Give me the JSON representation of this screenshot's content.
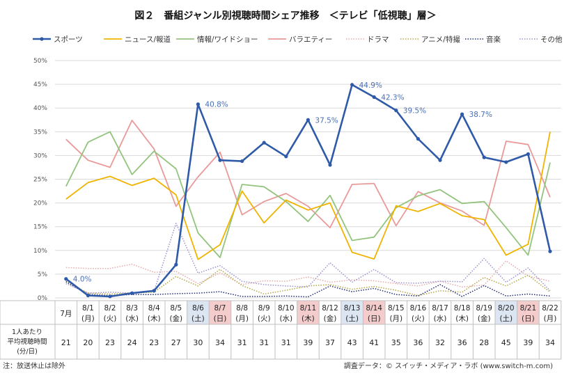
{
  "title": "図２　番組ジャンル別視聴時間シェア推移　＜テレビ「低視聴」層＞",
  "note": "注：放送休止は除外",
  "source": "調査データ：© スイッチ・メディア・ラボ (www.switch-m.com)",
  "row_label_lines": [
    "1人あたり",
    "平均視聴時間",
    "(分/日)"
  ],
  "colors": {
    "sports": "#2e5aa8",
    "news": "#f0b400",
    "info": "#93c47d",
    "variety": "#ea9999",
    "drama": "#e6a8a8",
    "anime": "#b5a642",
    "music": "#1f2a70",
    "other": "#9b8fcf",
    "saturday_bg": "#dce6f2",
    "sunday_bg": "#f4cccc",
    "grid": "#d9d9d9"
  },
  "chart_data": {
    "type": "line",
    "ylim": [
      0,
      50
    ],
    "yticks": [
      "0%",
      "5%",
      "10%",
      "15%",
      "20%",
      "25%",
      "30%",
      "35%",
      "40%",
      "45%",
      "50%"
    ],
    "categories": [
      "7月",
      "8/1",
      "8/2",
      "8/3",
      "8/4",
      "8/5",
      "8/6",
      "8/7",
      "8/8",
      "8/9",
      "8/10",
      "8/11",
      "8/12",
      "8/13",
      "8/14",
      "8/15",
      "8/16",
      "8/17",
      "8/18",
      "8/19",
      "8/20",
      "8/21",
      "8/22"
    ],
    "days": [
      "",
      "(月)",
      "(火)",
      "(水)",
      "(木)",
      "(金)",
      "(土)",
      "(日)",
      "(月)",
      "(火)",
      "(水)",
      "(木)",
      "(金)",
      "(土)",
      "(日)",
      "(月)",
      "(火)",
      "(水)",
      "(木)",
      "(金)",
      "(土)",
      "(日)",
      "(月)"
    ],
    "day_types": [
      "",
      "",
      "",
      "",
      "",
      "",
      "sat",
      "sun",
      "",
      "",
      "",
      "hol",
      "",
      "sat",
      "sun",
      "",
      "",
      "",
      "",
      "",
      "sat",
      "sun",
      ""
    ],
    "avg_minutes": [
      "21",
      "20",
      "23",
      "24",
      "23",
      "27",
      "30",
      "34",
      "31",
      "31",
      "31",
      "39",
      "37",
      "43",
      "41",
      "35",
      "36",
      "32",
      "36",
      "28",
      "45",
      "39",
      "34"
    ],
    "series": [
      {
        "key": "sports",
        "name": "スポーツ",
        "style": "solid-marker",
        "values": [
          4.0,
          0.5,
          0.3,
          1.0,
          1.5,
          7.0,
          40.8,
          29.0,
          28.8,
          32.7,
          29.8,
          37.5,
          28.0,
          44.9,
          42.3,
          39.5,
          33.5,
          29.0,
          38.7,
          29.6,
          28.6,
          30.3,
          9.8
        ]
      },
      {
        "key": "news",
        "name": "ニュース/報道",
        "style": "solid",
        "values": [
          20.8,
          24.3,
          25.6,
          23.7,
          25.2,
          21.7,
          8.1,
          11.2,
          22.5,
          15.8,
          20.6,
          18.5,
          20.0,
          9.6,
          8.2,
          19.4,
          18.2,
          19.9,
          17.3,
          16.5,
          9.0,
          11.3,
          35.0
        ]
      },
      {
        "key": "info",
        "name": "情報/ワイドショー",
        "style": "solid",
        "values": [
          23.5,
          32.8,
          35.0,
          26.0,
          30.9,
          27.2,
          13.7,
          8.5,
          23.9,
          23.4,
          20.3,
          16.1,
          21.6,
          12.1,
          12.8,
          19.0,
          21.5,
          22.8,
          19.9,
          20.3,
          14.8,
          9.0,
          28.5
        ]
      },
      {
        "key": "variety",
        "name": "バラエティー",
        "style": "solid",
        "values": [
          33.4,
          29.0,
          27.5,
          37.4,
          31.4,
          19.3,
          25.5,
          30.7,
          17.5,
          20.3,
          22.0,
          19.3,
          14.8,
          23.9,
          24.1,
          15.2,
          22.4,
          20.0,
          18.3,
          15.3,
          33.0,
          32.3,
          21.2
        ]
      },
      {
        "key": "drama",
        "name": "ドラマ",
        "style": "dotted",
        "values": [
          6.4,
          6.2,
          6.2,
          7.1,
          5.4,
          5.6,
          3.0,
          5.3,
          2.8,
          3.6,
          3.5,
          4.4,
          3.3,
          3.8,
          3.6,
          3.0,
          2.5,
          3.5,
          2.3,
          2.7,
          7.8,
          4.6,
          3.5
        ]
      },
      {
        "key": "anime",
        "name": "アニメ/特撮",
        "style": "dotted",
        "values": [
          3.5,
          1.0,
          0.8,
          1.0,
          1.2,
          4.5,
          2.5,
          6.0,
          2.6,
          0.8,
          1.6,
          2.5,
          2.8,
          1.8,
          2.4,
          1.6,
          0.5,
          1.5,
          1.2,
          4.3,
          2.5,
          4.8,
          1.2
        ]
      },
      {
        "key": "music",
        "name": "音楽",
        "style": "dotted",
        "values": [
          3.4,
          0.7,
          0.5,
          0.7,
          0.7,
          0.9,
          1.0,
          1.3,
          0.3,
          0.3,
          0.4,
          0.2,
          2.5,
          1.3,
          2.0,
          0.7,
          0.4,
          2.8,
          0.3,
          2.6,
          0.4,
          0.8,
          0.4
        ]
      },
      {
        "key": "other",
        "name": "その他",
        "style": "dotted",
        "values": [
          3.0,
          1.0,
          1.2,
          1.0,
          1.4,
          15.7,
          5.2,
          6.8,
          3.5,
          2.8,
          2.5,
          2.3,
          7.4,
          3.3,
          6.0,
          3.2,
          3.1,
          3.5,
          3.4,
          8.3,
          3.3,
          6.3,
          1.5
        ]
      }
    ],
    "annotations": [
      {
        "index": 0,
        "text": "4.0%"
      },
      {
        "index": 6,
        "text": "40.8%"
      },
      {
        "index": 11,
        "text": "37.5%"
      },
      {
        "index": 13,
        "text": "44.9%"
      },
      {
        "index": 14,
        "text": "42.3%"
      },
      {
        "index": 15,
        "text": "39.5%"
      },
      {
        "index": 18,
        "text": "38.7%"
      }
    ]
  }
}
